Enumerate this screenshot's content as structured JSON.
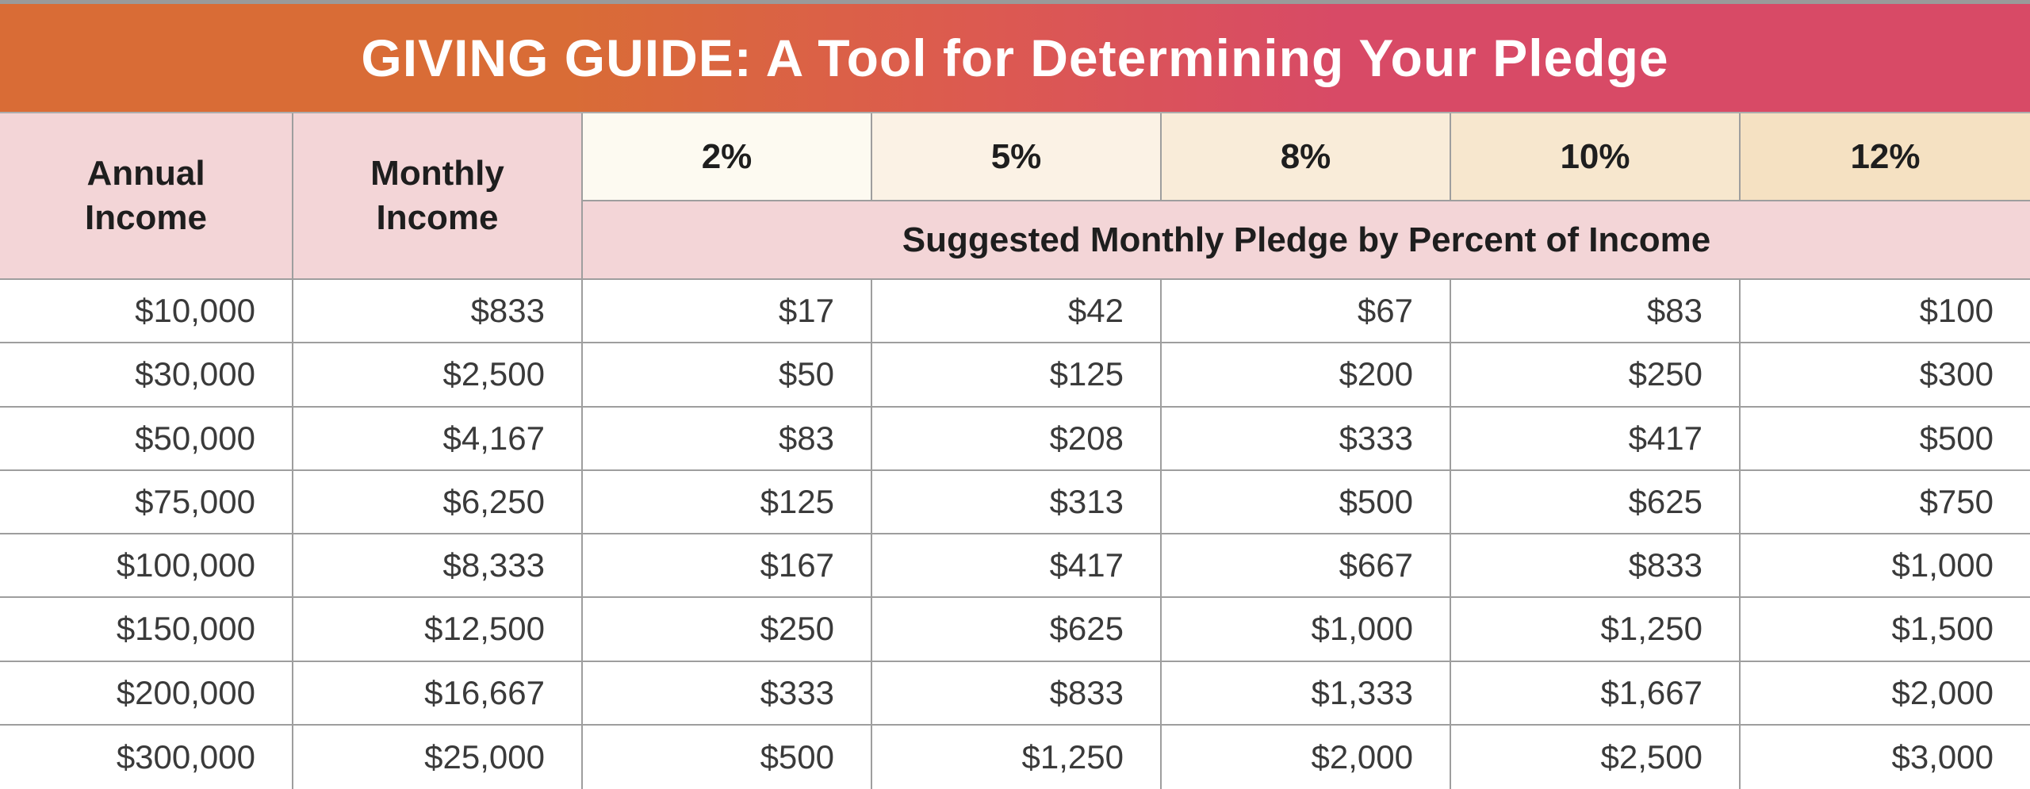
{
  "colors": {
    "banner_gradient_left": "#D96C36",
    "banner_gradient_right": "#D84A66",
    "header_pink": "#F3D5D7",
    "percent_cell_backgrounds": [
      "#FDFAF1",
      "#FBF2E5",
      "#F9ECD9",
      "#F7E7CE",
      "#F5E1C2"
    ],
    "grid_line": "#9E9E9E",
    "title_text": "#FFFFFF",
    "cell_text": "#3A3A3A"
  },
  "chart_data": {
    "type": "table",
    "title": "GIVING GUIDE: A Tool for Determining Your Pledge",
    "row_header_labels": [
      "Annual\nIncome",
      "Monthly\nIncome"
    ],
    "percent_headers": [
      "2%",
      "5%",
      "8%",
      "10%",
      "12%"
    ],
    "subtitle": "Suggested Monthly Pledge by Percent of Income",
    "columns": [
      "Annual Income",
      "Monthly Income",
      "2%",
      "5%",
      "8%",
      "10%",
      "12%"
    ],
    "rows": [
      [
        "$10,000",
        "$833",
        "$17",
        "$42",
        "$67",
        "$83",
        "$100"
      ],
      [
        "$30,000",
        "$2,500",
        "$50",
        "$125",
        "$200",
        "$250",
        "$300"
      ],
      [
        "$50,000",
        "$4,167",
        "$83",
        "$208",
        "$333",
        "$417",
        "$500"
      ],
      [
        "$75,000",
        "$6,250",
        "$125",
        "$313",
        "$500",
        "$625",
        "$750"
      ],
      [
        "$100,000",
        "$8,333",
        "$167",
        "$417",
        "$667",
        "$833",
        "$1,000"
      ],
      [
        "$150,000",
        "$12,500",
        "$250",
        "$625",
        "$1,000",
        "$1,250",
        "$1,500"
      ],
      [
        "$200,000",
        "$16,667",
        "$333",
        "$833",
        "$1,333",
        "$1,667",
        "$2,000"
      ],
      [
        "$300,000",
        "$25,000",
        "$500",
        "$1,250",
        "$2,000",
        "$2,500",
        "$3,000"
      ]
    ]
  }
}
